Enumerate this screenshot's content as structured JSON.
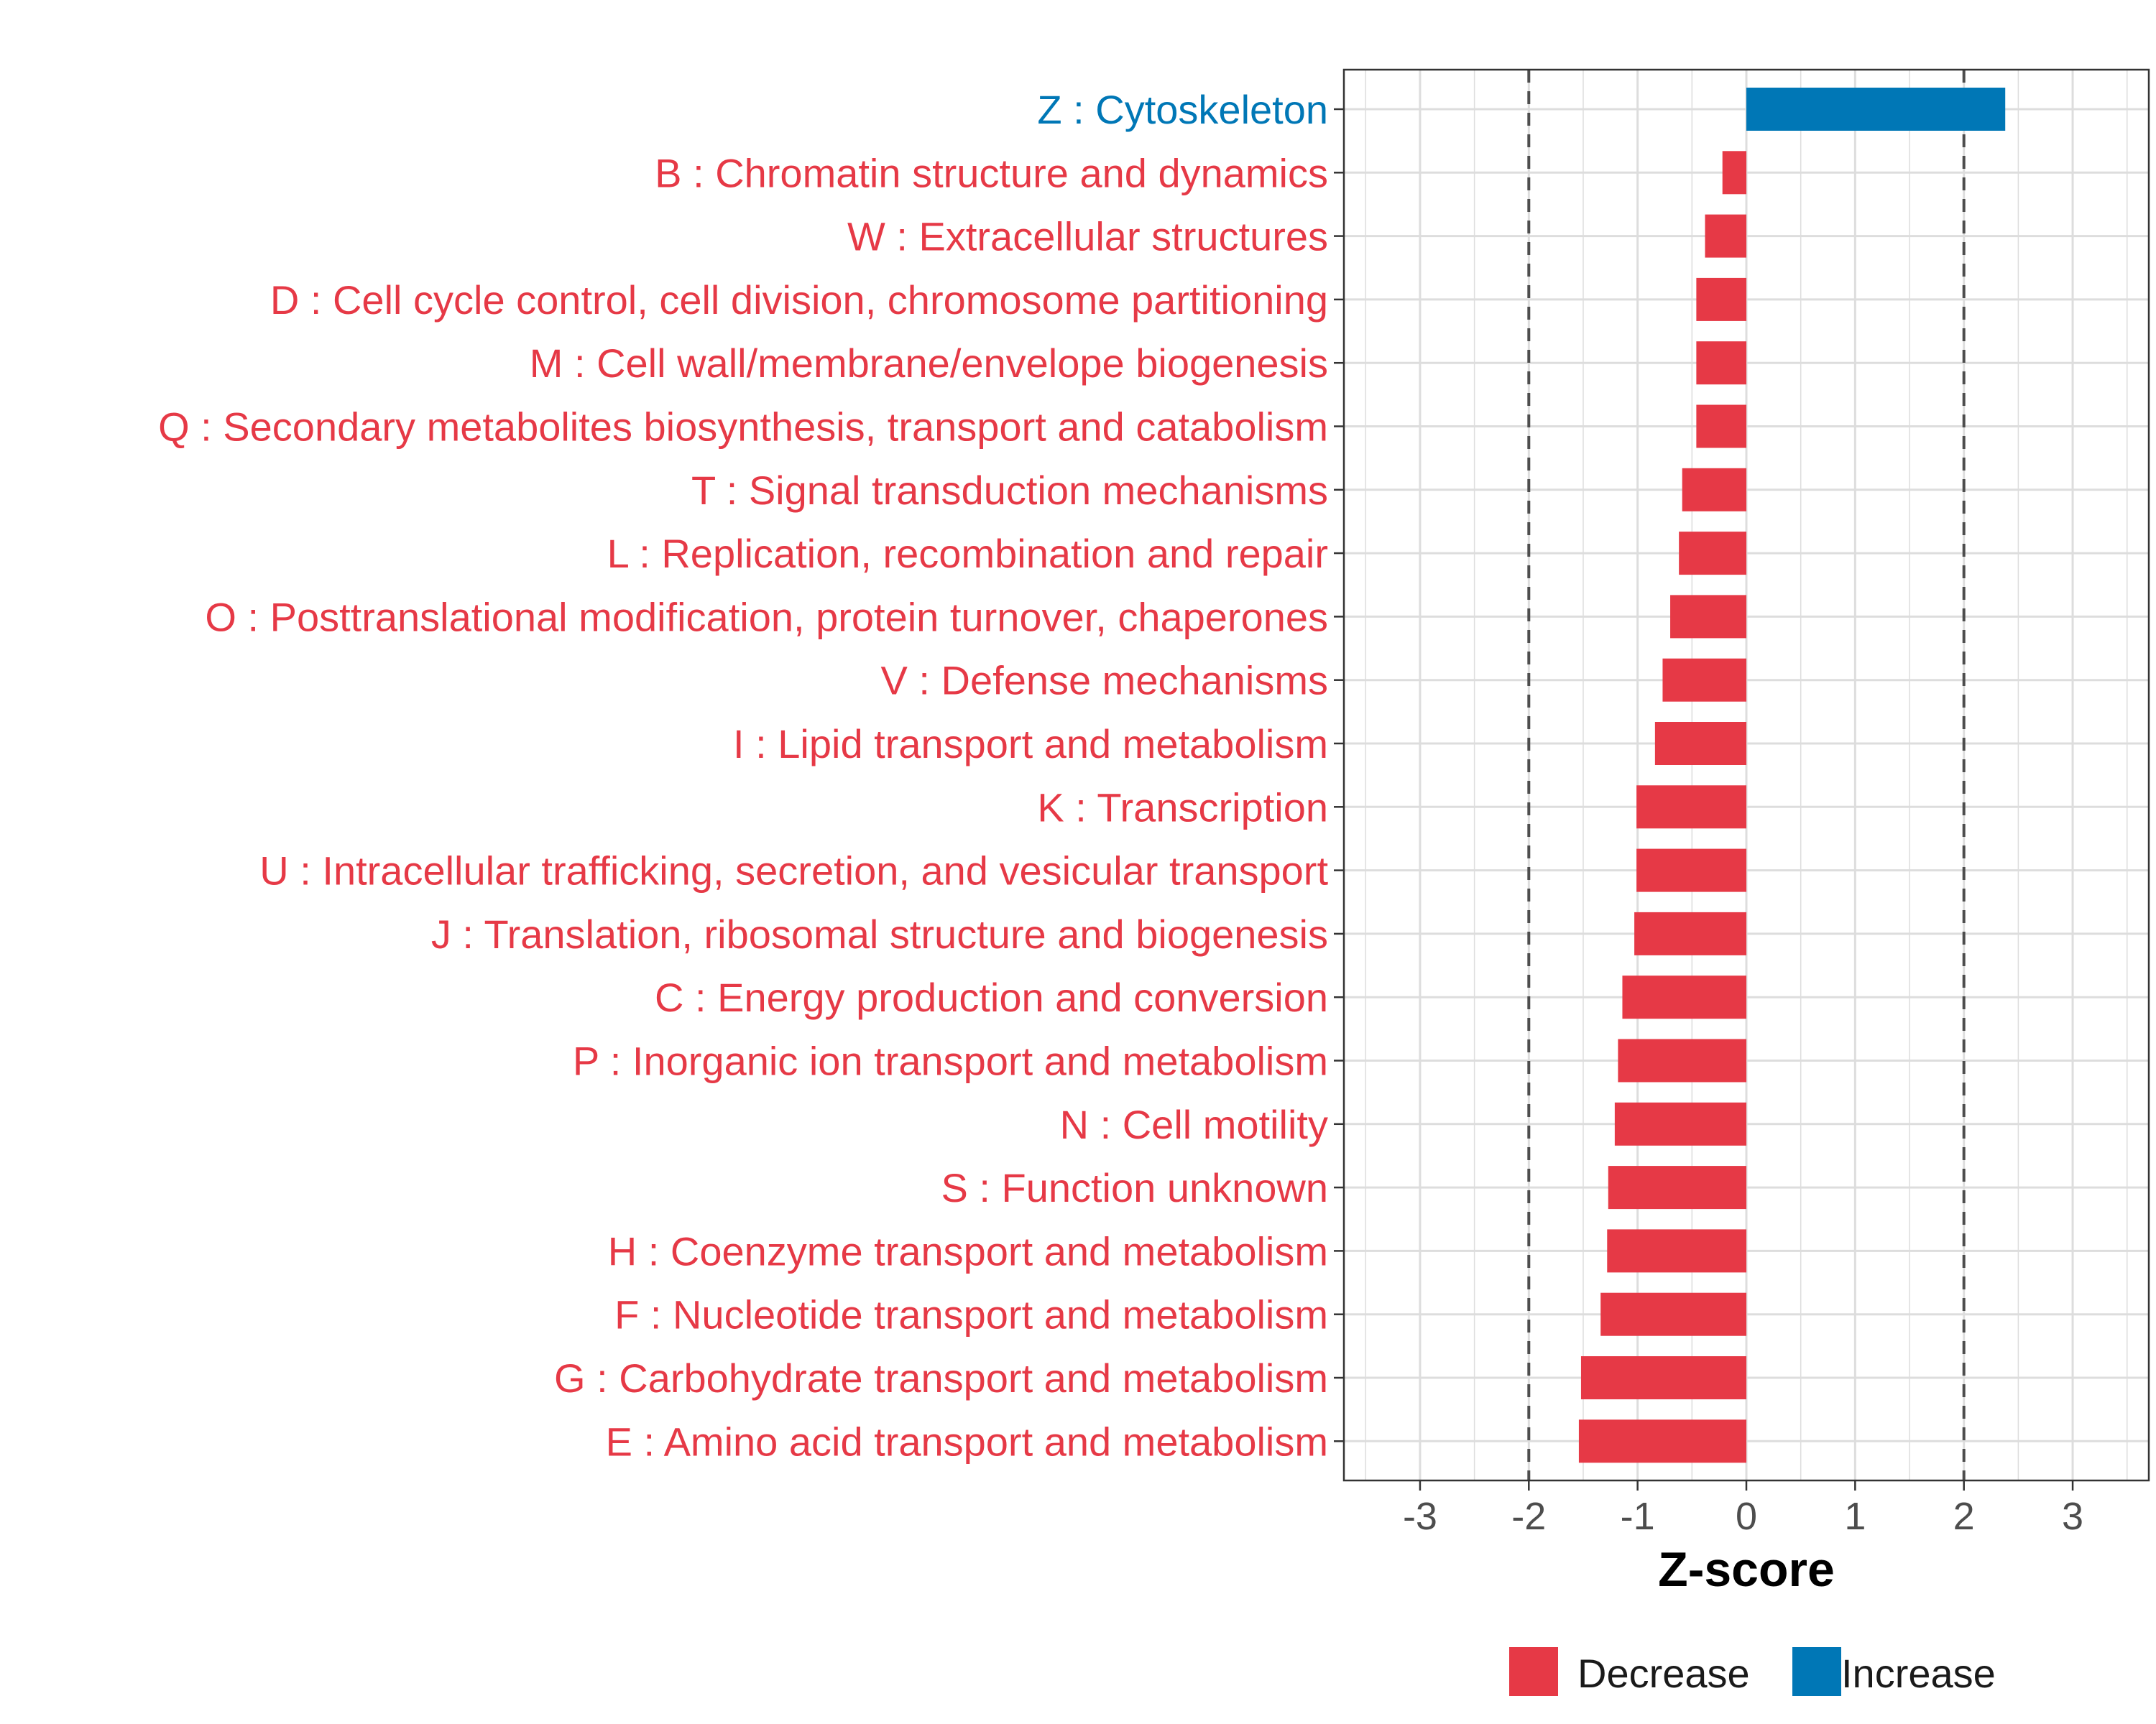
{
  "chart_data": {
    "type": "bar",
    "orientation": "horizontal",
    "title": "",
    "xlabel": "Z-score",
    "ylabel": "",
    "xlim": [
      -3.7,
      3.7
    ],
    "xticks": [
      -3,
      -2,
      -1,
      0,
      1,
      2,
      3
    ],
    "xtick_labels": [
      "-3",
      "-2",
      "-1",
      "0",
      "1",
      "2",
      "3"
    ],
    "reference_lines": [
      -2,
      2
    ],
    "grid": true,
    "legend_position": "bottom",
    "colors": {
      "Decrease": "#E63946",
      "Increase": "#0077B6"
    },
    "legend": [
      {
        "label": "Decrease",
        "color": "#E63946"
      },
      {
        "label": "Increase",
        "color": "#0077B6"
      }
    ],
    "categories": [
      "Z : Cytoskeleton",
      "B : Chromatin structure and dynamics",
      "W : Extracellular structures",
      "D : Cell cycle control, cell division, chromosome partitioning",
      "M : Cell wall/membrane/envelope biogenesis",
      "Q : Secondary metabolites biosynthesis, transport and catabolism",
      "T : Signal transduction mechanisms",
      "L : Replication, recombination and repair",
      "O : Posttranslational modification, protein turnover, chaperones",
      "V : Defense mechanisms",
      "I : Lipid transport and metabolism",
      "K : Transcription",
      "U : Intracellular trafficking, secretion, and vesicular transport",
      "J : Translation, ribosomal structure and biogenesis",
      "C : Energy production and conversion",
      "P : Inorganic ion transport and metabolism",
      "N : Cell motility",
      "S : Function unknown",
      "H : Coenzyme transport and metabolism",
      "F : Nucleotide transport and metabolism",
      "G : Carbohydrate transport and metabolism",
      "E : Amino acid transport and metabolism"
    ],
    "values": [
      2.38,
      -0.22,
      -0.38,
      -0.46,
      -0.46,
      -0.46,
      -0.59,
      -0.62,
      -0.7,
      -0.77,
      -0.84,
      -1.01,
      -1.01,
      -1.03,
      -1.14,
      -1.18,
      -1.21,
      -1.27,
      -1.28,
      -1.34,
      -1.52,
      -1.54
    ],
    "direction": [
      "Increase",
      "Decrease",
      "Decrease",
      "Decrease",
      "Decrease",
      "Decrease",
      "Decrease",
      "Decrease",
      "Decrease",
      "Decrease",
      "Decrease",
      "Decrease",
      "Decrease",
      "Decrease",
      "Decrease",
      "Decrease",
      "Decrease",
      "Decrease",
      "Decrease",
      "Decrease",
      "Decrease",
      "Decrease"
    ]
  }
}
